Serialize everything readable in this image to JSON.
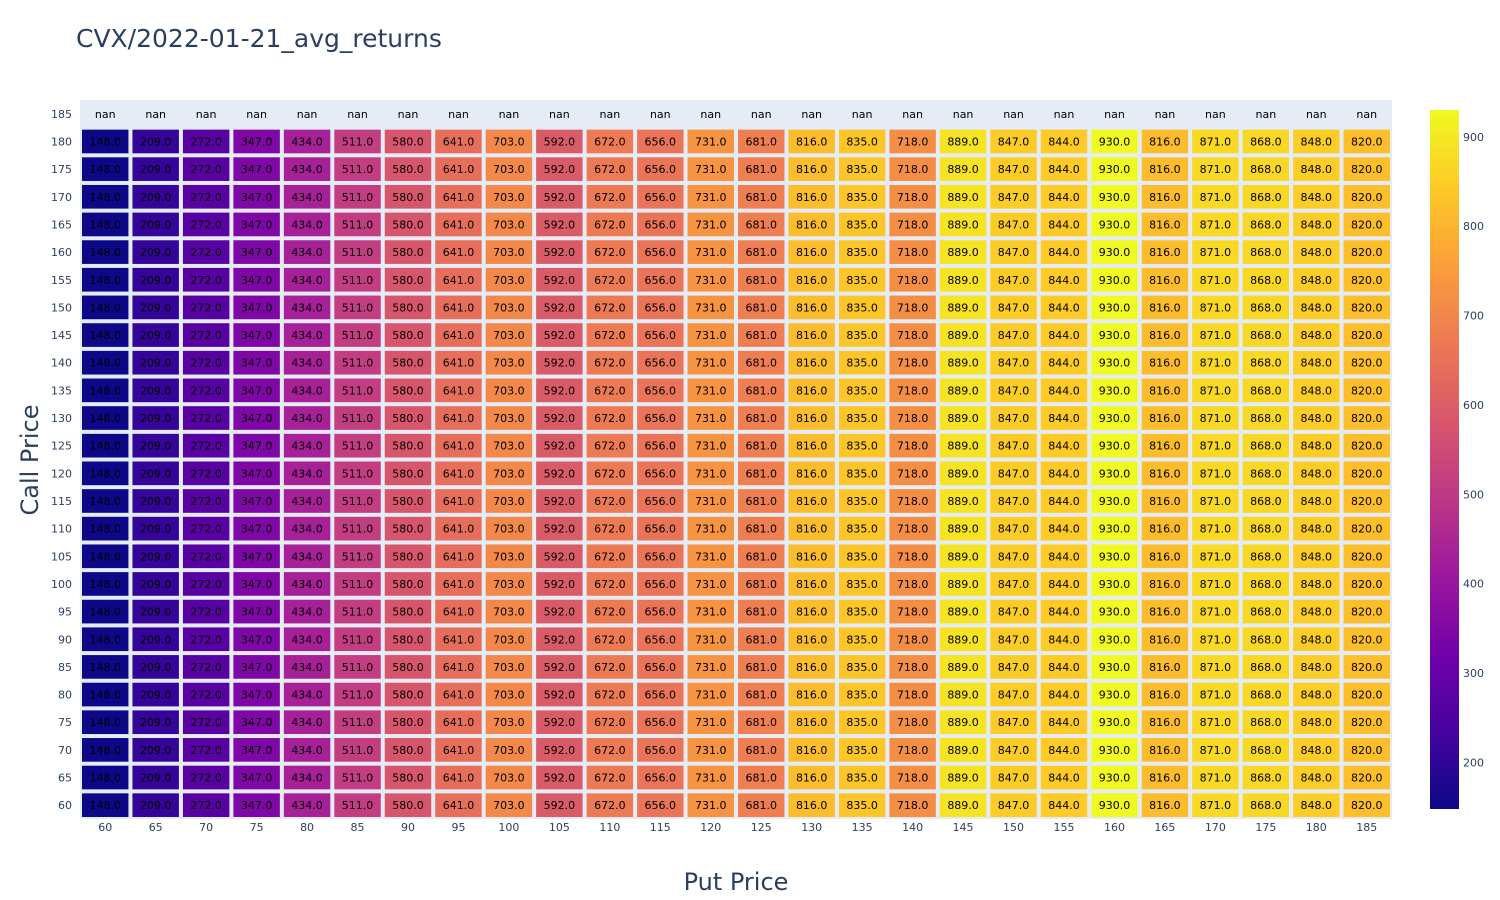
{
  "chart_data": {
    "type": "heatmap",
    "title": "CVX/2022-01-21_avg_returns",
    "xlabel": "Put Price",
    "ylabel": "Call Price",
    "x": [
      60,
      65,
      70,
      75,
      80,
      85,
      90,
      95,
      100,
      105,
      110,
      115,
      120,
      125,
      130,
      135,
      140,
      145,
      150,
      155,
      160,
      165,
      170,
      175,
      180,
      185
    ],
    "y": [
      60,
      65,
      70,
      75,
      80,
      85,
      90,
      95,
      100,
      105,
      110,
      115,
      120,
      125,
      130,
      135,
      140,
      145,
      150,
      155,
      160,
      165,
      170,
      175,
      180,
      185
    ],
    "row_values": [
      148.0,
      209.0,
      272.0,
      347.0,
      434.0,
      511.0,
      580.0,
      641.0,
      703.0,
      592.0,
      672.0,
      656.0,
      731.0,
      681.0,
      816.0,
      835.0,
      718.0,
      889.0,
      847.0,
      844.0,
      930.0,
      816.0,
      871.0,
      868.0,
      848.0,
      820.0
    ],
    "nan_rows": [
      185
    ],
    "nan_label": "nan",
    "colorscale": "Plasma",
    "zmin": 148,
    "zmax": 930,
    "colorbar_ticks": [
      200,
      300,
      400,
      500,
      600,
      700,
      800,
      900
    ]
  }
}
